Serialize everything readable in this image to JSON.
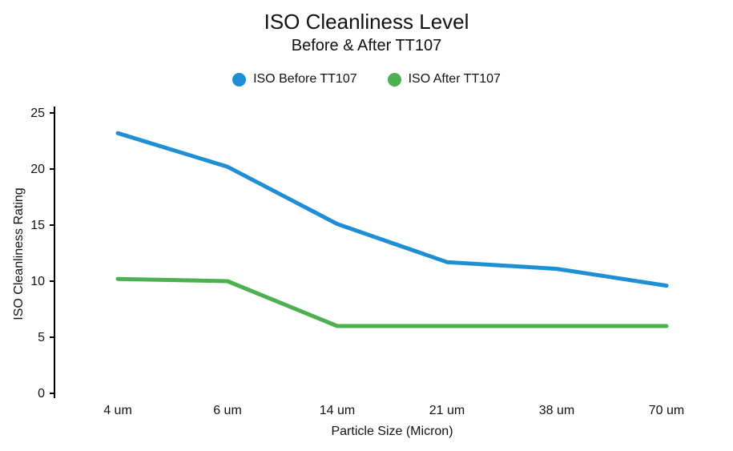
{
  "chart": {
    "title": "ISO Cleanliness Level",
    "subtitle": "Before & After TT107"
  },
  "chart_data": {
    "type": "line",
    "categories": [
      "4 um",
      "6 um",
      "14 um",
      "21 um",
      "38 um",
      "70 um"
    ],
    "series": [
      {
        "name": "ISO Before TT107",
        "color": "#1e8fd5",
        "values": [
          23.2,
          20.2,
          15.1,
          11.7,
          11.1,
          9.6
        ]
      },
      {
        "name": "ISO After TT107",
        "color": "#4caf50",
        "values": [
          10.2,
          10.0,
          6.0,
          6.0,
          6.0,
          6.0
        ]
      }
    ],
    "xlabel": "Particle Size (Micron)",
    "ylabel": "ISO Cleanliness Rating",
    "ylim": [
      0,
      25
    ],
    "yticks": [
      0,
      5,
      10,
      15,
      20,
      25
    ],
    "grid": false,
    "legend_position": "top",
    "axis_color": "#000000"
  }
}
